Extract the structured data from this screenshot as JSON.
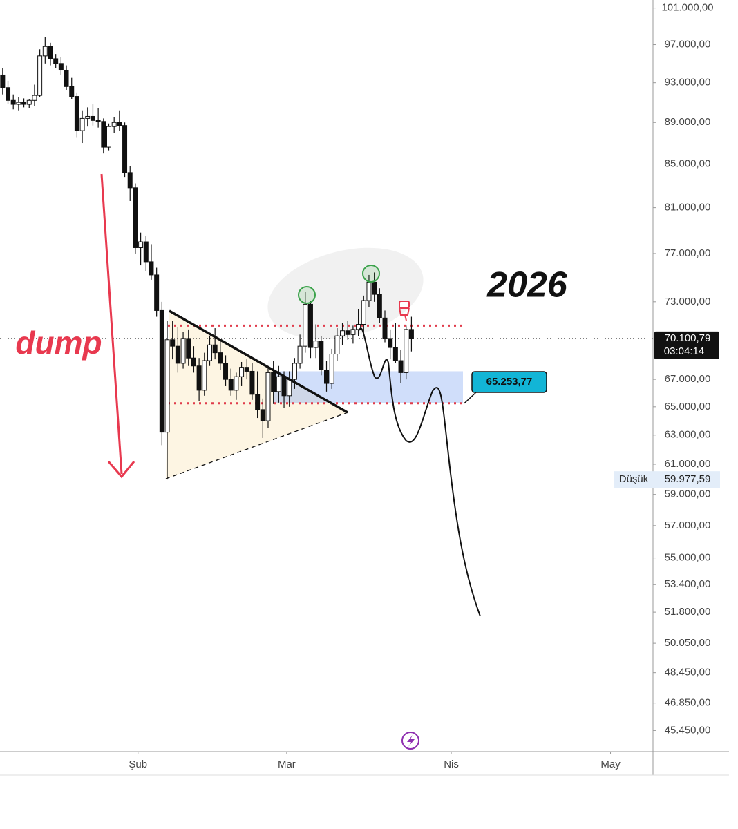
{
  "chart_data": {
    "type": "candlestick",
    "log_scale": true,
    "ylim": [
      44400,
      101900
    ],
    "xlim": [
      0,
      123
    ],
    "yticks": [
      {
        "value": 101000,
        "label": "101.000,00"
      },
      {
        "value": 97000,
        "label": "97.000,00"
      },
      {
        "value": 93000,
        "label": "93.000,00"
      },
      {
        "value": 89000,
        "label": "89.000,00"
      },
      {
        "value": 85000,
        "label": "85.000,00"
      },
      {
        "value": 81000,
        "label": "81.000,00"
      },
      {
        "value": 77000,
        "label": "77.000,00"
      },
      {
        "value": 73000,
        "label": "73.000,00"
      },
      {
        "value": 67000,
        "label": "67.000,00"
      },
      {
        "value": 65000,
        "label": "65.000,00"
      },
      {
        "value": 63000,
        "label": "63.000,00"
      },
      {
        "value": 61000,
        "label": "61.000,00"
      },
      {
        "value": 59000,
        "label": "59.000,00"
      },
      {
        "value": 57000,
        "label": "57.000,00"
      },
      {
        "value": 55000,
        "label": "55.000,00"
      },
      {
        "value": 53400,
        "label": "53.400,00"
      },
      {
        "value": 51800,
        "label": "51.800,00"
      },
      {
        "value": 50050,
        "label": "50.050,00"
      },
      {
        "value": 48450,
        "label": "48.450,00"
      },
      {
        "value": 46850,
        "label": "46.850,00"
      },
      {
        "value": 45450,
        "label": "45.450,00"
      }
    ],
    "xticks": [
      {
        "value": 26,
        "label": "Şub"
      },
      {
        "value": 54,
        "label": "Mar"
      },
      {
        "value": 85,
        "label": "Nis"
      },
      {
        "value": 115,
        "label": "May"
      }
    ],
    "up_color": "#ffffff",
    "down_color": "#111111",
    "candles": [
      [
        93800,
        94500,
        91800,
        92500
      ],
      [
        92500,
        93200,
        90800,
        91200
      ],
      [
        91200,
        91800,
        90300,
        90800
      ],
      [
        90800,
        91500,
        90200,
        91000
      ],
      [
        91000,
        91400,
        90500,
        90800
      ],
      [
        90800,
        91300,
        90400,
        91200
      ],
      [
        91200,
        92800,
        90600,
        91700
      ],
      [
        91700,
        96500,
        91500,
        95800
      ],
      [
        95800,
        97800,
        95000,
        96800
      ],
      [
        96800,
        97200,
        94800,
        95500
      ],
      [
        95500,
        96000,
        94500,
        95000
      ],
      [
        95000,
        95700,
        93800,
        94300
      ],
      [
        94300,
        94800,
        92200,
        92600
      ],
      [
        92600,
        93500,
        91300,
        91600
      ],
      [
        91600,
        92000,
        87500,
        88200
      ],
      [
        88200,
        90200,
        87000,
        89400
      ],
      [
        89400,
        90500,
        88600,
        89600
      ],
      [
        89600,
        90800,
        88700,
        89200
      ],
      [
        89200,
        90400,
        88500,
        89100
      ],
      [
        89100,
        89400,
        86000,
        86600
      ],
      [
        86600,
        88900,
        86300,
        88600
      ],
      [
        88600,
        89500,
        88000,
        89000
      ],
      [
        89000,
        90200,
        88200,
        88700
      ],
      [
        88700,
        89000,
        83800,
        84200
      ],
      [
        84200,
        84800,
        81600,
        82800
      ],
      [
        82800,
        83200,
        77000,
        77500
      ],
      [
        77500,
        78800,
        76000,
        78000
      ],
      [
        78000,
        78500,
        75500,
        76300
      ],
      [
        76300,
        77800,
        74800,
        75200
      ],
      [
        75200,
        75800,
        71800,
        72300
      ],
      [
        72300,
        73000,
        62300,
        63200
      ],
      [
        63200,
        71500,
        59977.59,
        70000
      ],
      [
        70000,
        71500,
        68500,
        69500
      ],
      [
        69500,
        71000,
        67500,
        68200
      ],
      [
        68200,
        70600,
        67800,
        70100
      ],
      [
        70100,
        70800,
        68000,
        68600
      ],
      [
        68600,
        69500,
        67500,
        68000
      ],
      [
        68000,
        68600,
        65400,
        66200
      ],
      [
        66200,
        69000,
        65800,
        68400
      ],
      [
        68400,
        70300,
        68000,
        69600
      ],
      [
        69600,
        70900,
        68500,
        69000
      ],
      [
        69000,
        70000,
        67700,
        68200
      ],
      [
        68200,
        68800,
        66500,
        67000
      ],
      [
        67000,
        67800,
        65800,
        66200
      ],
      [
        66200,
        67500,
        65500,
        67200
      ],
      [
        67200,
        68300,
        66500,
        67900
      ],
      [
        67900,
        68500,
        67000,
        67600
      ],
      [
        67600,
        68200,
        65500,
        65900
      ],
      [
        65900,
        67600,
        64200,
        64800
      ],
      [
        64800,
        65600,
        62800,
        64000
      ],
      [
        64000,
        68000,
        63500,
        67500
      ],
      [
        67500,
        68400,
        65200,
        66100
      ],
      [
        66100,
        68000,
        65300,
        67200
      ],
      [
        67200,
        67600,
        64900,
        65800
      ],
      [
        65800,
        67600,
        65000,
        67000
      ],
      [
        67000,
        68600,
        66300,
        68200
      ],
      [
        68200,
        70400,
        67800,
        69500
      ],
      [
        69500,
        73800,
        69000,
        72800
      ],
      [
        72800,
        73100,
        68600,
        69400
      ],
      [
        69400,
        71200,
        68600,
        69900
      ],
      [
        69900,
        70300,
        67300,
        67700
      ],
      [
        67700,
        68400,
        66100,
        66700
      ],
      [
        66700,
        69300,
        66300,
        68900
      ],
      [
        68900,
        70900,
        68400,
        70300
      ],
      [
        70300,
        71300,
        69600,
        70700
      ],
      [
        70700,
        71500,
        70000,
        70400
      ],
      [
        70400,
        71100,
        69700,
        70800
      ],
      [
        70800,
        72400,
        70300,
        71200
      ],
      [
        71200,
        73500,
        70500,
        73100
      ],
      [
        73100,
        75200,
        72600,
        74600
      ],
      [
        74600,
        75400,
        73000,
        73600
      ],
      [
        73600,
        74100,
        71300,
        71700
      ],
      [
        71700,
        72300,
        69800,
        70100
      ],
      [
        70100,
        70800,
        68500,
        69400
      ],
      [
        69400,
        71300,
        68200,
        68400
      ],
      [
        68400,
        69200,
        66700,
        67500
      ],
      [
        67500,
        71100,
        67000,
        70800
      ],
      [
        70800,
        71800,
        69100,
        70100.79
      ]
    ],
    "last_price": {
      "value": 70100.79,
      "label": "70.100,79"
    },
    "countdown": "03:04:14",
    "low": {
      "name": "Düşük",
      "value": 59977.59,
      "label": "59.977,59"
    },
    "resistance": 71100,
    "target": {
      "value": 65253.77,
      "label": "65.253,77"
    },
    "zone": [
      65253.77,
      67600
    ],
    "annotations": {
      "dump": "dump",
      "year": "2026"
    }
  }
}
